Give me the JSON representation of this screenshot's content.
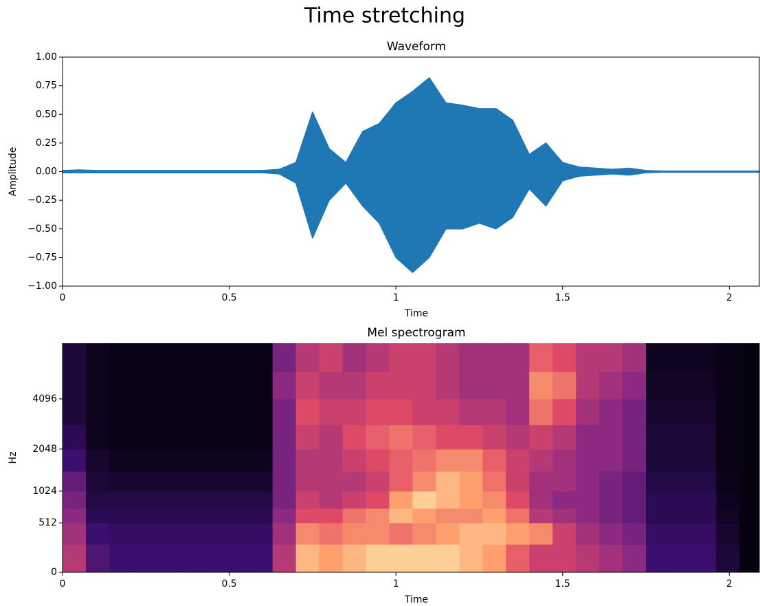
{
  "title": "Time stretching",
  "chart_data": [
    {
      "type": "area",
      "title": "Waveform",
      "xlabel": "Time",
      "ylabel": "Amplitude",
      "color": "#1f77b4",
      "x": [
        0,
        0.05,
        0.1,
        0.15,
        0.2,
        0.25,
        0.3,
        0.35,
        0.4,
        0.45,
        0.5,
        0.55,
        0.6,
        0.65,
        0.7,
        0.75,
        0.8,
        0.85,
        0.9,
        0.95,
        1,
        1.05,
        1.1,
        1.15,
        1.2,
        1.25,
        1.3,
        1.35,
        1.4,
        1.45,
        1.5,
        1.55,
        1.6,
        1.65,
        1.7,
        1.75,
        1.8,
        1.85,
        1.9,
        1.95,
        2,
        2.05,
        2.09
      ],
      "upper": [
        0.01,
        0.015,
        0.01,
        0.01,
        0.01,
        0.01,
        0.01,
        0.01,
        0.01,
        0.01,
        0.01,
        0.01,
        0.01,
        0.02,
        0.08,
        0.52,
        0.2,
        0.08,
        0.35,
        0.42,
        0.6,
        0.7,
        0.82,
        0.6,
        0.58,
        0.55,
        0.55,
        0.45,
        0.15,
        0.25,
        0.08,
        0.04,
        0.03,
        0.02,
        0.03,
        0.01,
        0.005,
        0.005,
        0.005,
        0.005,
        0.005,
        0.005,
        0.005
      ],
      "lower": [
        -0.01,
        -0.01,
        -0.01,
        -0.01,
        -0.01,
        -0.01,
        -0.01,
        -0.01,
        -0.01,
        -0.01,
        -0.01,
        -0.01,
        -0.01,
        -0.02,
        -0.1,
        -0.58,
        -0.25,
        -0.1,
        -0.3,
        -0.45,
        -0.75,
        -0.88,
        -0.75,
        -0.5,
        -0.5,
        -0.45,
        -0.5,
        -0.4,
        -0.15,
        -0.3,
        -0.08,
        -0.04,
        -0.03,
        -0.02,
        -0.03,
        -0.01,
        -0.005,
        -0.005,
        -0.005,
        -0.005,
        -0.005,
        -0.005,
        -0.005
      ],
      "xlim": [
        0,
        2.09
      ],
      "xticks": [
        0,
        0.5,
        1,
        1.5,
        2
      ],
      "ylim": [
        -1,
        1
      ],
      "yticks": [
        {
          "value": -1,
          "label": "−1.00"
        },
        {
          "value": -0.75,
          "label": "−0.75"
        },
        {
          "value": -0.5,
          "label": "−0.50"
        },
        {
          "value": -0.25,
          "label": "−0.25"
        },
        {
          "value": 0,
          "label": "0.00"
        },
        {
          "value": 0.25,
          "label": "0.25"
        },
        {
          "value": 0.5,
          "label": "0.50"
        },
        {
          "value": 0.75,
          "label": "0.75"
        },
        {
          "value": 1,
          "label": "1.00"
        }
      ]
    },
    {
      "type": "heatmap",
      "title": "Mel spectrogram",
      "xlabel": "Time",
      "ylabel": "Hz",
      "yscale": "mel",
      "colormap": [
        "#000004",
        "#3b0f70",
        "#8c2981",
        "#de4968",
        "#fe9f6d",
        "#fcfdbf"
      ],
      "xbins": [
        0,
        0.07,
        0.14,
        0.21,
        0.28,
        0.35,
        0.42,
        0.49,
        0.56,
        0.63,
        0.7,
        0.77,
        0.84,
        0.91,
        0.98,
        1.05,
        1.12,
        1.19,
        1.26,
        1.33,
        1.4,
        1.47,
        1.54,
        1.61,
        1.68,
        1.75,
        1.82,
        1.89,
        1.96,
        2.03,
        2.09
      ],
      "ybins": [
        0,
        256,
        512,
        724,
        1024,
        1448,
        2048,
        2896,
        4096,
        5793,
        8192
      ],
      "z": [
        [
          0.5,
          0.45,
          0.4,
          0.35,
          0.3,
          0.2,
          0.15,
          0.1,
          0.1,
          0.1
        ],
        [
          0.25,
          0.2,
          0.15,
          0.12,
          0.1,
          0.08,
          0.05,
          0.05,
          0.05,
          0.05
        ],
        [
          0.2,
          0.18,
          0.15,
          0.12,
          0.08,
          0.05,
          0.03,
          0.03,
          0.03,
          0.03
        ],
        [
          0.2,
          0.18,
          0.15,
          0.12,
          0.08,
          0.05,
          0.03,
          0.03,
          0.03,
          0.03
        ],
        [
          0.2,
          0.18,
          0.15,
          0.12,
          0.08,
          0.05,
          0.03,
          0.03,
          0.03,
          0.03
        ],
        [
          0.2,
          0.18,
          0.15,
          0.12,
          0.08,
          0.05,
          0.03,
          0.03,
          0.03,
          0.03
        ],
        [
          0.2,
          0.18,
          0.15,
          0.12,
          0.08,
          0.05,
          0.03,
          0.03,
          0.03,
          0.03
        ],
        [
          0.2,
          0.18,
          0.15,
          0.12,
          0.08,
          0.05,
          0.03,
          0.03,
          0.03,
          0.03
        ],
        [
          0.2,
          0.18,
          0.15,
          0.12,
          0.08,
          0.05,
          0.03,
          0.03,
          0.03,
          0.03
        ],
        [
          0.5,
          0.45,
          0.4,
          0.35,
          0.35,
          0.35,
          0.35,
          0.35,
          0.4,
          0.35
        ],
        [
          0.85,
          0.75,
          0.6,
          0.55,
          0.5,
          0.5,
          0.55,
          0.6,
          0.55,
          0.5
        ],
        [
          0.8,
          0.7,
          0.6,
          0.5,
          0.5,
          0.5,
          0.5,
          0.55,
          0.5,
          0.55
        ],
        [
          0.85,
          0.75,
          0.7,
          0.55,
          0.5,
          0.55,
          0.6,
          0.55,
          0.5,
          0.45
        ],
        [
          0.9,
          0.75,
          0.75,
          0.6,
          0.55,
          0.6,
          0.65,
          0.6,
          0.55,
          0.5
        ],
        [
          0.9,
          0.7,
          0.85,
          0.8,
          0.65,
          0.65,
          0.7,
          0.6,
          0.55,
          0.55
        ],
        [
          0.9,
          0.75,
          0.8,
          0.9,
          0.75,
          0.7,
          0.65,
          0.55,
          0.55,
          0.55
        ],
        [
          0.9,
          0.8,
          0.75,
          0.85,
          0.85,
          0.75,
          0.6,
          0.55,
          0.5,
          0.5
        ],
        [
          0.85,
          0.85,
          0.75,
          0.8,
          0.8,
          0.75,
          0.6,
          0.5,
          0.45,
          0.45
        ],
        [
          0.8,
          0.85,
          0.8,
          0.75,
          0.7,
          0.65,
          0.55,
          0.5,
          0.45,
          0.45
        ],
        [
          0.65,
          0.8,
          0.7,
          0.6,
          0.55,
          0.55,
          0.5,
          0.45,
          0.45,
          0.45
        ],
        [
          0.55,
          0.75,
          0.5,
          0.45,
          0.45,
          0.5,
          0.55,
          0.7,
          0.75,
          0.65
        ],
        [
          0.55,
          0.55,
          0.45,
          0.4,
          0.45,
          0.45,
          0.5,
          0.6,
          0.7,
          0.6
        ],
        [
          0.5,
          0.45,
          0.4,
          0.4,
          0.4,
          0.4,
          0.4,
          0.45,
          0.5,
          0.5
        ],
        [
          0.45,
          0.4,
          0.35,
          0.35,
          0.35,
          0.4,
          0.4,
          0.4,
          0.45,
          0.5
        ],
        [
          0.4,
          0.35,
          0.3,
          0.3,
          0.3,
          0.35,
          0.35,
          0.35,
          0.4,
          0.45
        ],
        [
          0.2,
          0.18,
          0.15,
          0.15,
          0.12,
          0.1,
          0.1,
          0.08,
          0.06,
          0.05
        ],
        [
          0.2,
          0.18,
          0.15,
          0.15,
          0.12,
          0.1,
          0.1,
          0.08,
          0.06,
          0.05
        ],
        [
          0.2,
          0.18,
          0.15,
          0.15,
          0.12,
          0.1,
          0.1,
          0.08,
          0.06,
          0.05
        ],
        [
          0.1,
          0.08,
          0.06,
          0.05,
          0.04,
          0.03,
          0.03,
          0.03,
          0.03,
          0.03
        ],
        [
          0.02,
          0.02,
          0.02,
          0.02,
          0.02,
          0.02,
          0.02,
          0.02,
          0.02,
          0.02
        ]
      ],
      "xlim": [
        0,
        2.09
      ],
      "xticks": [
        0,
        0.5,
        1,
        1.5,
        2
      ],
      "ylim": [
        0,
        8192
      ],
      "yticks": [
        0,
        512,
        1024,
        2048,
        4096
      ]
    }
  ]
}
